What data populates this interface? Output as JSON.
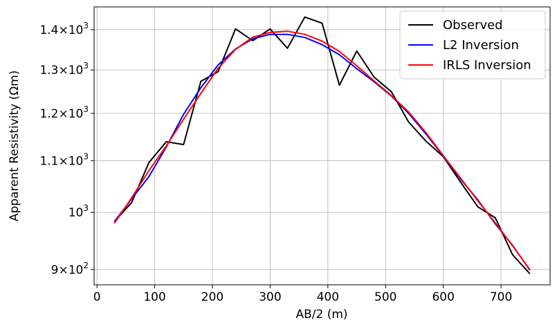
{
  "chart_data": {
    "type": "line",
    "xlabel": "AB/2 (m)",
    "ylabel": "Apparent Resistivity (Ωm)",
    "xlim": [
      -5,
      785
    ],
    "ylim": [
      875,
      1460
    ],
    "yscale": "log",
    "grid": true,
    "legend_position": "top-right",
    "x_ticks": [
      0,
      100,
      200,
      300,
      400,
      500,
      600,
      700
    ],
    "y_ticks": [
      {
        "value": 900,
        "mantissa": "9",
        "base": "10",
        "exp": "2"
      },
      {
        "value": 1000,
        "mantissa": "",
        "base": "10",
        "exp": "3"
      },
      {
        "value": 1100,
        "mantissa": "1.1",
        "base": "10",
        "exp": "3"
      },
      {
        "value": 1200,
        "mantissa": "1.2",
        "base": "10",
        "exp": "3"
      },
      {
        "value": 1300,
        "mantissa": "1.3",
        "base": "10",
        "exp": "3"
      },
      {
        "value": 1400,
        "mantissa": "1.4",
        "base": "10",
        "exp": "3"
      }
    ],
    "series": [
      {
        "name": "Observed",
        "color": "#000000",
        "x": [
          30,
          60,
          90,
          120,
          150,
          180,
          210,
          240,
          270,
          300,
          330,
          360,
          390,
          420,
          450,
          480,
          510,
          540,
          570,
          600,
          630,
          660,
          690,
          720,
          750
        ],
        "y": [
          983,
          1018,
          1096,
          1139,
          1133,
          1273,
          1296,
          1402,
          1372,
          1402,
          1353,
          1433,
          1417,
          1264,
          1346,
          1283,
          1249,
          1181,
          1140,
          1108,
          1057,
          1010,
          990,
          925,
          893
        ]
      },
      {
        "name": "L2 Inversion",
        "color": "#0000ff",
        "x": [
          30,
          60,
          90,
          120,
          150,
          180,
          210,
          240,
          270,
          300,
          330,
          360,
          390,
          420,
          450,
          480,
          510,
          540,
          570,
          600,
          630,
          660,
          690,
          720,
          750
        ],
        "y": [
          983,
          1025,
          1068,
          1128,
          1198,
          1258,
          1312,
          1351,
          1377,
          1388,
          1388,
          1380,
          1362,
          1337,
          1303,
          1272,
          1239,
          1200,
          1155,
          1109,
          1063,
          1023,
          979,
          941,
          899
        ]
      },
      {
        "name": "IRLS Inversion",
        "color": "#ff0000",
        "x": [
          30,
          60,
          90,
          120,
          150,
          180,
          210,
          240,
          270,
          300,
          330,
          360,
          390,
          420,
          450,
          480,
          510,
          540,
          570,
          600,
          630,
          660,
          690,
          720,
          750
        ],
        "y": [
          980,
          1027,
          1080,
          1130,
          1187,
          1245,
          1304,
          1350,
          1381,
          1393,
          1396,
          1388,
          1371,
          1345,
          1310,
          1274,
          1240,
          1203,
          1158,
          1110,
          1065,
          1021,
          981,
          940,
          900
        ]
      }
    ]
  }
}
